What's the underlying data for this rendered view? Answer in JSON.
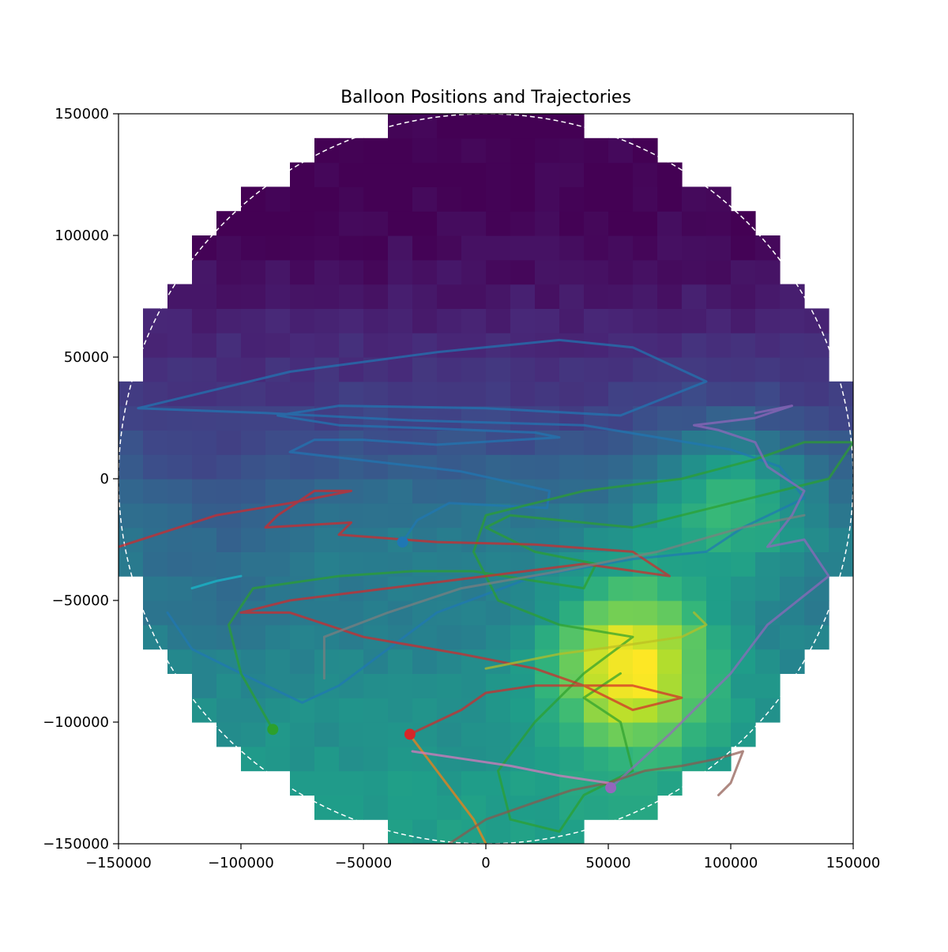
{
  "chart_data": {
    "type": "heatmap",
    "title": "Balloon Positions and Trajectories",
    "xlabel": "",
    "ylabel": "",
    "xlim": [
      -150000,
      150000
    ],
    "ylim": [
      -150000,
      150000
    ],
    "xticks": [
      -150000,
      -100000,
      -50000,
      0,
      50000,
      100000,
      150000
    ],
    "yticks": [
      -150000,
      -100000,
      -50000,
      0,
      50000,
      100000,
      150000
    ],
    "xtick_labels": [
      "−150000",
      "−100000",
      "−50000",
      "0",
      "50000",
      "100000",
      "150000"
    ],
    "ytick_labels": [
      "−150000",
      "−100000",
      "−50000",
      "0",
      "50000",
      "100000",
      "150000"
    ],
    "colormap": "viridis",
    "grid": false,
    "heatmap": {
      "x_range": [
        -150000,
        150000
      ],
      "y_range": [
        -150000,
        150000
      ],
      "cells": 30,
      "mask_radius": 150000,
      "value_range": [
        0,
        1
      ],
      "anchors_y": [
        -150000,
        -130000,
        -115000,
        -100000,
        -85000,
        -70000,
        -55000,
        -40000,
        -25000,
        -10000,
        0,
        10000,
        25000,
        40000,
        55000,
        70000,
        85000,
        100000,
        115000,
        130000,
        150000
      ],
      "anchors_value": [
        0.55,
        0.55,
        0.52,
        0.5,
        0.48,
        0.45,
        0.42,
        0.42,
        0.42,
        0.38,
        0.32,
        0.27,
        0.2,
        0.15,
        0.12,
        0.08,
        0.04,
        0.02,
        0.0,
        0.0,
        0.0
      ],
      "hotspot": {
        "x": 60000,
        "y": -75000,
        "sx": 32000,
        "sy": 35000,
        "amp": 0.55
      },
      "warm_east": {
        "x": 100000,
        "y": -5000,
        "sx": 30000,
        "sy": 30000,
        "amp": 0.3
      },
      "west_cool": {
        "x": -110000,
        "y": -20000,
        "sx": 30000,
        "sy": 40000,
        "amp": -0.1
      }
    },
    "boundary_circle": {
      "radius": 150000,
      "style": "dashed",
      "color": "#ffffff"
    },
    "series": [
      {
        "color": "#1f77b4",
        "marker": [
          -34000,
          -26000
        ],
        "points": [
          [
            -34000,
            -26000
          ],
          [
            -28000,
            -17000
          ],
          [
            -15000,
            -10000
          ],
          [
            25000,
            -12000
          ],
          [
            26000,
            -5000
          ],
          [
            -10000,
            3000
          ],
          [
            -80000,
            11000
          ],
          [
            -70000,
            16000
          ],
          [
            -50000,
            16000
          ],
          [
            -20000,
            14000
          ],
          [
            30000,
            17000
          ],
          [
            20000,
            19000
          ],
          [
            -30000,
            21000
          ],
          [
            -60000,
            22000
          ],
          [
            -85000,
            26000
          ],
          [
            -60000,
            30000
          ],
          [
            0,
            29000
          ],
          [
            55000,
            26000
          ],
          [
            90000,
            40000
          ],
          [
            60000,
            54000
          ],
          [
            30000,
            57000
          ],
          [
            -20000,
            52000
          ],
          [
            -80000,
            44000
          ],
          [
            -142000,
            29000
          ],
          [
            -90000,
            27000
          ],
          [
            -30000,
            24000
          ],
          [
            40000,
            22000
          ],
          [
            100000,
            12000
          ],
          [
            120000,
            5000
          ],
          [
            130000,
            -8000
          ],
          [
            105000,
            -20000
          ],
          [
            90000,
            -30000
          ],
          [
            60000,
            -33000
          ],
          [
            20000,
            -40000
          ],
          [
            -20000,
            -55000
          ],
          [
            -60000,
            -85000
          ],
          [
            -75000,
            -92000
          ],
          [
            -100000,
            -80000
          ],
          [
            -120000,
            -70000
          ],
          [
            -130000,
            -55000
          ]
        ]
      },
      {
        "color": "#ff7f0e",
        "marker": null,
        "points": [
          [
            -32000,
            -104000
          ],
          [
            -20000,
            -120000
          ],
          [
            -5000,
            -140000
          ],
          [
            0,
            -150000
          ],
          [
            -5000,
            -156000
          ]
        ]
      },
      {
        "color": "#2ca02c",
        "marker": [
          -87000,
          -103000
        ],
        "points": [
          [
            -87000,
            -103000
          ],
          [
            -100000,
            -80000
          ],
          [
            -105000,
            -60000
          ],
          [
            -95000,
            -45000
          ],
          [
            -60000,
            -40000
          ],
          [
            -30000,
            -38000
          ],
          [
            -5000,
            -38000
          ],
          [
            20000,
            -42000
          ],
          [
            40000,
            -45000
          ],
          [
            45000,
            -35000
          ],
          [
            20000,
            -30000
          ],
          [
            0,
            -20000
          ],
          [
            10000,
            -15000
          ],
          [
            60000,
            -20000
          ],
          [
            100000,
            -10000
          ],
          [
            140000,
            0
          ],
          [
            150000,
            15000
          ],
          [
            130000,
            15000
          ],
          [
            110000,
            8000
          ],
          [
            80000,
            0
          ],
          [
            40000,
            -5000
          ],
          [
            0,
            -15000
          ],
          [
            -5000,
            -30000
          ],
          [
            5000,
            -50000
          ],
          [
            30000,
            -60000
          ],
          [
            60000,
            -65000
          ],
          [
            40000,
            -80000
          ],
          [
            20000,
            -100000
          ],
          [
            5000,
            -120000
          ],
          [
            10000,
            -140000
          ],
          [
            30000,
            -145000
          ],
          [
            40000,
            -130000
          ],
          [
            60000,
            -120000
          ],
          [
            55000,
            -100000
          ],
          [
            40000,
            -90000
          ],
          [
            55000,
            -80000
          ]
        ]
      },
      {
        "color": "#d62728",
        "marker": [
          -31000,
          -105000
        ],
        "points": [
          [
            -31000,
            -105000
          ],
          [
            -10000,
            -95000
          ],
          [
            0,
            -88000
          ],
          [
            20000,
            -85000
          ],
          [
            60000,
            -85000
          ],
          [
            80000,
            -90000
          ],
          [
            60000,
            -95000
          ],
          [
            40000,
            -85000
          ],
          [
            20000,
            -78000
          ],
          [
            -10000,
            -72000
          ],
          [
            -50000,
            -65000
          ],
          [
            -80000,
            -55000
          ],
          [
            -100000,
            -55000
          ],
          [
            -80000,
            -50000
          ],
          [
            -40000,
            -45000
          ],
          [
            0,
            -40000
          ],
          [
            40000,
            -35000
          ],
          [
            75000,
            -40000
          ],
          [
            60000,
            -30000
          ],
          [
            20000,
            -27000
          ],
          [
            -20000,
            -26000
          ],
          [
            -60000,
            -23000
          ],
          [
            -55000,
            -18000
          ],
          [
            -90000,
            -20000
          ],
          [
            -85000,
            -15000
          ],
          [
            -70000,
            -5000
          ],
          [
            -55000,
            -5000
          ],
          [
            -80000,
            -10000
          ],
          [
            -110000,
            -15000
          ],
          [
            -150000,
            -28000
          ]
        ]
      },
      {
        "color": "#9467bd",
        "marker": [
          51000,
          -127000
        ],
        "points": [
          [
            51000,
            -127000
          ],
          [
            75000,
            -105000
          ],
          [
            100000,
            -80000
          ],
          [
            115000,
            -60000
          ],
          [
            130000,
            -48000
          ],
          [
            140000,
            -40000
          ],
          [
            130000,
            -25000
          ],
          [
            115000,
            -28000
          ],
          [
            125000,
            -15000
          ],
          [
            130000,
            -5000
          ],
          [
            115000,
            5000
          ],
          [
            110000,
            15000
          ],
          [
            95000,
            20000
          ],
          [
            85000,
            22000
          ],
          [
            110000,
            25000
          ],
          [
            125000,
            30000
          ],
          [
            110000,
            27000
          ]
        ]
      },
      {
        "color": "#8c564b",
        "marker": null,
        "points": [
          [
            -15000,
            -150000
          ],
          [
            0,
            -140000
          ],
          [
            20000,
            -133000
          ],
          [
            35000,
            -128000
          ],
          [
            50000,
            -125000
          ],
          [
            65000,
            -120000
          ],
          [
            80000,
            -118000
          ],
          [
            95000,
            -115000
          ],
          [
            105000,
            -112000
          ],
          [
            100000,
            -125000
          ],
          [
            95000,
            -130000
          ]
        ]
      },
      {
        "color": "#e377c2",
        "marker": null,
        "points": [
          [
            -30000,
            -112000
          ],
          [
            -10000,
            -115000
          ],
          [
            10000,
            -118000
          ],
          [
            30000,
            -122000
          ],
          [
            50000,
            -125000
          ]
        ]
      },
      {
        "color": "#7f7f7f",
        "marker": null,
        "points": [
          [
            -66000,
            -82000
          ],
          [
            -66000,
            -65000
          ],
          [
            -40000,
            -55000
          ],
          [
            -10000,
            -45000
          ],
          [
            30000,
            -38000
          ],
          [
            70000,
            -30000
          ],
          [
            105000,
            -20000
          ],
          [
            130000,
            -15000
          ]
        ]
      },
      {
        "color": "#bcbd22",
        "marker": null,
        "points": [
          [
            0,
            -78000
          ],
          [
            30000,
            -72000
          ],
          [
            60000,
            -68000
          ],
          [
            80000,
            -65000
          ],
          [
            90000,
            -60000
          ],
          [
            85000,
            -55000
          ]
        ]
      },
      {
        "color": "#17becf",
        "marker": null,
        "points": [
          [
            -120000,
            -45000
          ],
          [
            -110000,
            -42000
          ],
          [
            -100000,
            -40000
          ]
        ]
      }
    ]
  }
}
